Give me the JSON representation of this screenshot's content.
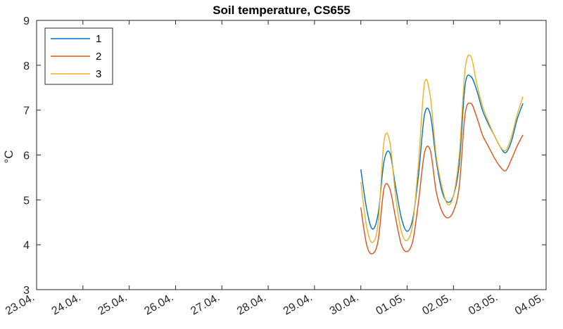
{
  "chart_data": {
    "type": "line",
    "title": "Soil temperature, CS655",
    "xlabel": "",
    "ylabel": "°C",
    "x_type": "date",
    "x_range": [
      "2024-04-23",
      "2024-05-04"
    ],
    "ylim": [
      3,
      9
    ],
    "yticks": [
      3,
      4,
      5,
      6,
      7,
      8,
      9
    ],
    "xtick_labels": [
      "23.04.",
      "24.04.",
      "25.04.",
      "26.04.",
      "27.04.",
      "28.04.",
      "29.04.",
      "30.04.",
      "01.05.",
      "02.05.",
      "03.05.",
      "04.05."
    ],
    "grid": false,
    "legend_position": "top-left",
    "series": [
      {
        "name": "1",
        "color": "#0072BD",
        "x": [
          "2024-04-30T00:00",
          "2024-04-30T03:00",
          "2024-04-30T06:00",
          "2024-04-30T09:00",
          "2024-04-30T12:00",
          "2024-04-30T15:00",
          "2024-04-30T18:00",
          "2024-04-30T21:00",
          "2024-05-01T00:00",
          "2024-05-01T03:00",
          "2024-05-01T06:00",
          "2024-05-01T09:00",
          "2024-05-01T12:00",
          "2024-05-01T15:00",
          "2024-05-01T18:00",
          "2024-05-01T21:00",
          "2024-05-02T00:00",
          "2024-05-02T03:00",
          "2024-05-02T06:00",
          "2024-05-02T09:00",
          "2024-05-02T12:00",
          "2024-05-02T15:00",
          "2024-05-02T18:00",
          "2024-05-02T21:00",
          "2024-05-03T00:00",
          "2024-05-03T03:00",
          "2024-05-03T06:00",
          "2024-05-03T09:00",
          "2024-05-03T12:00"
        ],
        "y": [
          5.68,
          4.8,
          4.35,
          4.7,
          5.85,
          6.05,
          5.3,
          4.6,
          4.3,
          4.6,
          5.6,
          6.9,
          6.9,
          5.9,
          5.2,
          4.95,
          5.1,
          5.8,
          7.55,
          7.75,
          7.45,
          7.0,
          6.7,
          6.45,
          6.2,
          6.05,
          6.3,
          6.8,
          7.15
        ],
        "values_approximate": true
      },
      {
        "name": "2",
        "color": "#D95319",
        "x": [
          "2024-04-30T00:00",
          "2024-04-30T03:00",
          "2024-04-30T06:00",
          "2024-04-30T09:00",
          "2024-04-30T12:00",
          "2024-04-30T15:00",
          "2024-04-30T18:00",
          "2024-04-30T21:00",
          "2024-05-01T00:00",
          "2024-05-01T03:00",
          "2024-05-01T06:00",
          "2024-05-01T09:00",
          "2024-05-01T12:00",
          "2024-05-01T15:00",
          "2024-05-01T18:00",
          "2024-05-01T21:00",
          "2024-05-02T00:00",
          "2024-05-02T03:00",
          "2024-05-02T06:00",
          "2024-05-02T09:00",
          "2024-05-02T12:00",
          "2024-05-02T15:00",
          "2024-05-02T18:00",
          "2024-05-02T21:00",
          "2024-05-03T00:00",
          "2024-05-03T03:00",
          "2024-05-03T06:00",
          "2024-05-03T09:00",
          "2024-05-03T12:00"
        ],
        "y": [
          4.83,
          4.0,
          3.8,
          4.1,
          5.25,
          5.25,
          4.6,
          4.0,
          3.85,
          4.1,
          5.0,
          6.05,
          6.1,
          5.2,
          4.75,
          4.6,
          4.75,
          5.3,
          6.9,
          7.15,
          6.85,
          6.45,
          6.2,
          5.95,
          5.75,
          5.65,
          5.9,
          6.2,
          6.45
        ],
        "values_approximate": true
      },
      {
        "name": "3",
        "color": "#EDB120",
        "x": [
          "2024-04-30T00:00",
          "2024-04-30T03:00",
          "2024-04-30T06:00",
          "2024-04-30T09:00",
          "2024-04-30T12:00",
          "2024-04-30T15:00",
          "2024-04-30T18:00",
          "2024-04-30T21:00",
          "2024-05-01T00:00",
          "2024-05-01T03:00",
          "2024-05-01T06:00",
          "2024-05-01T09:00",
          "2024-05-01T12:00",
          "2024-05-01T15:00",
          "2024-05-01T18:00",
          "2024-05-01T21:00",
          "2024-05-02T00:00",
          "2024-05-02T03:00",
          "2024-05-02T06:00",
          "2024-05-02T09:00",
          "2024-05-02T12:00",
          "2024-05-02T15:00",
          "2024-05-02T18:00",
          "2024-05-02T21:00",
          "2024-05-03T00:00",
          "2024-05-03T03:00",
          "2024-05-03T06:00",
          "2024-05-03T09:00",
          "2024-05-03T12:00"
        ],
        "y": [
          5.4,
          4.4,
          4.05,
          4.5,
          6.3,
          6.3,
          5.1,
          4.3,
          4.1,
          4.5,
          5.9,
          7.6,
          7.3,
          6.0,
          5.3,
          4.9,
          5.1,
          6.0,
          7.9,
          8.2,
          7.6,
          7.1,
          6.75,
          6.45,
          6.2,
          6.1,
          6.4,
          6.9,
          7.3
        ],
        "values_approximate": true
      }
    ]
  }
}
